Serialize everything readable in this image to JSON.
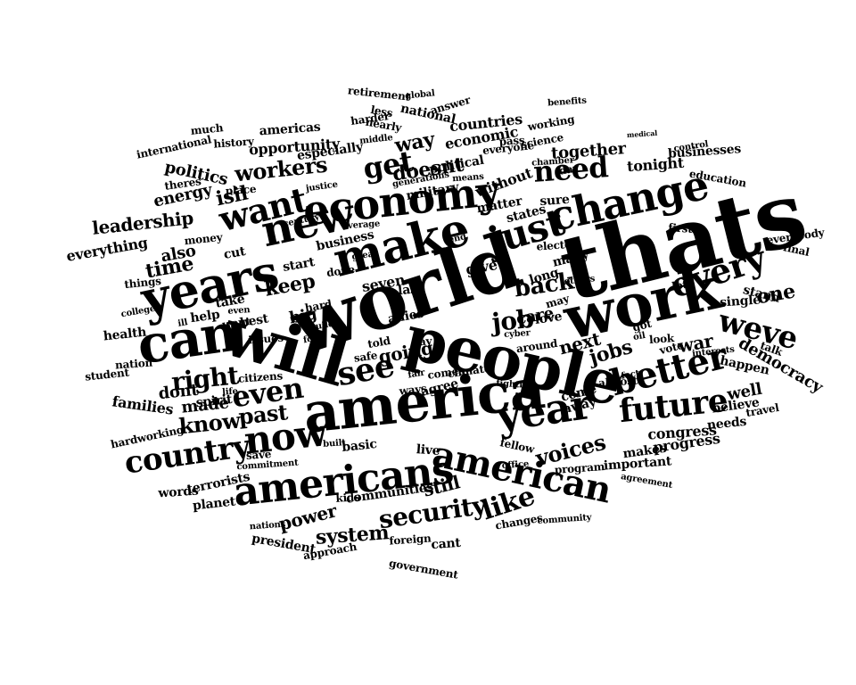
{
  "colors": {
    "background": "#ffffff",
    "text": "#000000"
  },
  "words": [
    "thats",
    "world",
    "america",
    "people",
    "will",
    "work",
    "can",
    "years",
    "change",
    "make",
    "economy",
    "new",
    "just",
    "americans",
    "american",
    "year",
    "every",
    "better",
    "future",
    "now",
    "country",
    "weve",
    "want",
    "see",
    "even",
    "need",
    "get",
    "job",
    "right",
    "security",
    "like",
    "know",
    "back",
    "past",
    "voices",
    "one",
    "workers",
    "keep",
    "jobs",
    "going",
    "still",
    "time",
    "leadership",
    "next",
    "doesnt",
    "way",
    "also",
    "care",
    "war",
    "democracy",
    "system",
    "power",
    "made",
    "dont",
    "families",
    "everything",
    "isil",
    "energy",
    "politics",
    "together",
    "give",
    "congress",
    "well",
    "big",
    "tonight",
    "away",
    "states",
    "many",
    "help",
    "best",
    "take",
    "without",
    "opportunity",
    "especially",
    "military",
    "economic",
    "political",
    "countries",
    "national",
    "americas",
    "nearly",
    "harder",
    "less",
    "answer",
    "working",
    "international",
    "history",
    "much",
    "retirement",
    "global",
    "benefits",
    "medical",
    "businesses",
    "control",
    "education",
    "everybody",
    "final",
    "first",
    "lot",
    "single",
    "stand",
    "talk",
    "happen",
    "needs",
    "believe",
    "travel",
    "progress",
    "makes",
    "important",
    "agreement",
    "program",
    "fellow",
    "office",
    "community",
    "changes",
    "communities",
    "kids",
    "basic",
    "live",
    "cant",
    "foreign",
    "government",
    "approach",
    "president",
    "nations",
    "planet",
    "terrorists",
    "words",
    "hardworking",
    "commitment",
    "built",
    "save",
    "student",
    "nation",
    "health",
    "college",
    "spirit",
    "citizens",
    "life",
    "safe",
    "told",
    "pay",
    "comes",
    "agree",
    "ways",
    "fair",
    "climate",
    "allies",
    "seven",
    "last",
    "start",
    "done",
    "business",
    "great",
    "money",
    "place",
    "theres",
    "justice",
    "century",
    "average",
    "end",
    "matter",
    "means",
    "generations",
    "chamber",
    "everyone",
    "science",
    "pass",
    "middle",
    "day",
    "sure",
    "elected",
    "others",
    "long",
    "may",
    "love",
    "come",
    "around",
    "almost",
    "got",
    "vote",
    "look",
    "oil",
    "fact",
    "interests",
    "fighting",
    "cyber",
    "hard",
    "issues",
    "build",
    "for",
    "even",
    "ill",
    "wont",
    "things",
    "cut"
  ]
}
